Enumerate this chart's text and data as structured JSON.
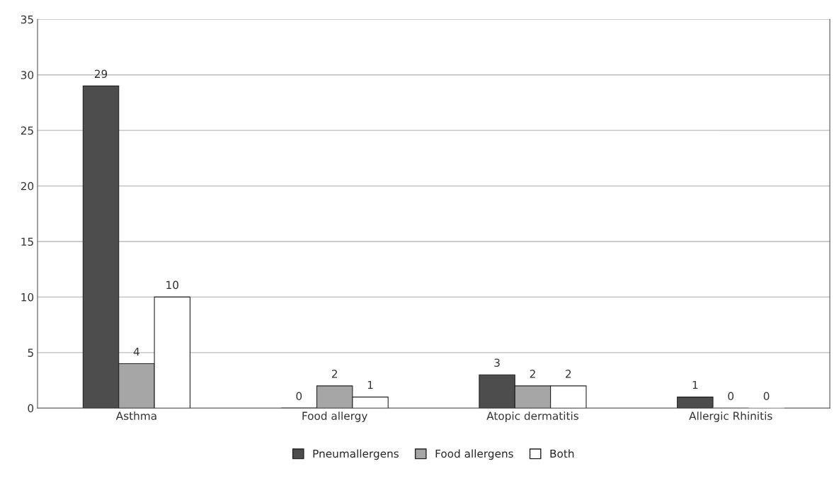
{
  "chart_data": {
    "type": "bar",
    "categories": [
      "Asthma",
      "Food allergy",
      "Atopic dermatitis",
      "Allergic Rhinitis"
    ],
    "series": [
      {
        "name": "Pneumallergens",
        "color": "#4d4d4d",
        "values": [
          29,
          0,
          3,
          1
        ]
      },
      {
        "name": "Food allergens",
        "color": "#a6a6a6",
        "values": [
          4,
          2,
          2,
          0
        ]
      },
      {
        "name": "Both",
        "color": "#ffffff",
        "values": [
          10,
          1,
          2,
          0
        ]
      }
    ],
    "ylim": [
      0,
      35
    ],
    "yticks": [
      0,
      5,
      10,
      15,
      20,
      25,
      30,
      35
    ],
    "grid": "y",
    "legend": "bottom",
    "data_labels": true
  }
}
